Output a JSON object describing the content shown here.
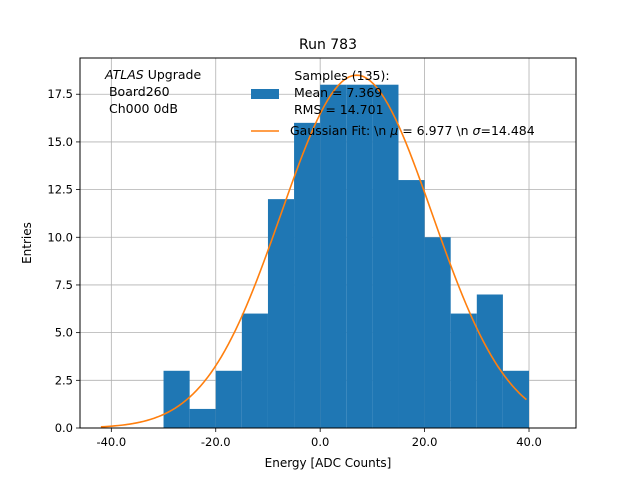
{
  "chart_data": {
    "type": "bar",
    "title": "Run 783",
    "xlabel": "Energy [ADC Counts]",
    "ylabel": "Entries",
    "xlim": [
      -46,
      49
    ],
    "ylim": [
      0,
      19.4
    ],
    "grid": true,
    "x_ticks": [
      {
        "value": -40,
        "label": "-40.0"
      },
      {
        "value": -20,
        "label": "-20.0"
      },
      {
        "value": 0,
        "label": "0.0"
      },
      {
        "value": 20,
        "label": "20.0"
      },
      {
        "value": 40,
        "label": "40.0"
      }
    ],
    "y_ticks": [
      {
        "value": 0,
        "label": "0.0"
      },
      {
        "value": 2.5,
        "label": "2.5"
      },
      {
        "value": 5,
        "label": "5.0"
      },
      {
        "value": 7.5,
        "label": "7.5"
      },
      {
        "value": 10,
        "label": "10.0"
      },
      {
        "value": 12.5,
        "label": "12.5"
      },
      {
        "value": 15,
        "label": "15.0"
      },
      {
        "value": 17.5,
        "label": "17.5"
      }
    ],
    "bin_edges": [
      -30,
      -25,
      -20,
      -15,
      -10,
      -5,
      0,
      5,
      10,
      15,
      20,
      25,
      30,
      35,
      40
    ],
    "values": [
      3,
      1,
      3,
      6,
      12,
      16,
      18,
      18,
      18,
      13,
      10,
      6,
      7,
      3
    ],
    "bar_color": "#1f77b4",
    "fit": {
      "mu": 6.977,
      "sigma": 14.484,
      "amplitude": 18.5,
      "x_range": [
        -42,
        39.5
      ],
      "color": "#ff7f0e"
    },
    "annotation": {
      "line1_italic": "ATLAS",
      "line1_rest": " Upgrade",
      "line2": " Board260",
      "line3": " Ch000 0dB"
    },
    "legend": {
      "placement": "top-right",
      "title": "Samples (135):",
      "hist_label_line1": " Mean = 7.369",
      "hist_label_line2": " RMS = 14.701",
      "fit_label_pre": "Gaussian Fit: \\n ",
      "fit_label_mu": "μ",
      "fit_label_mid": " = 6.977 \\n ",
      "fit_label_sigma": "σ",
      "fit_label_post": "=14.484"
    }
  }
}
